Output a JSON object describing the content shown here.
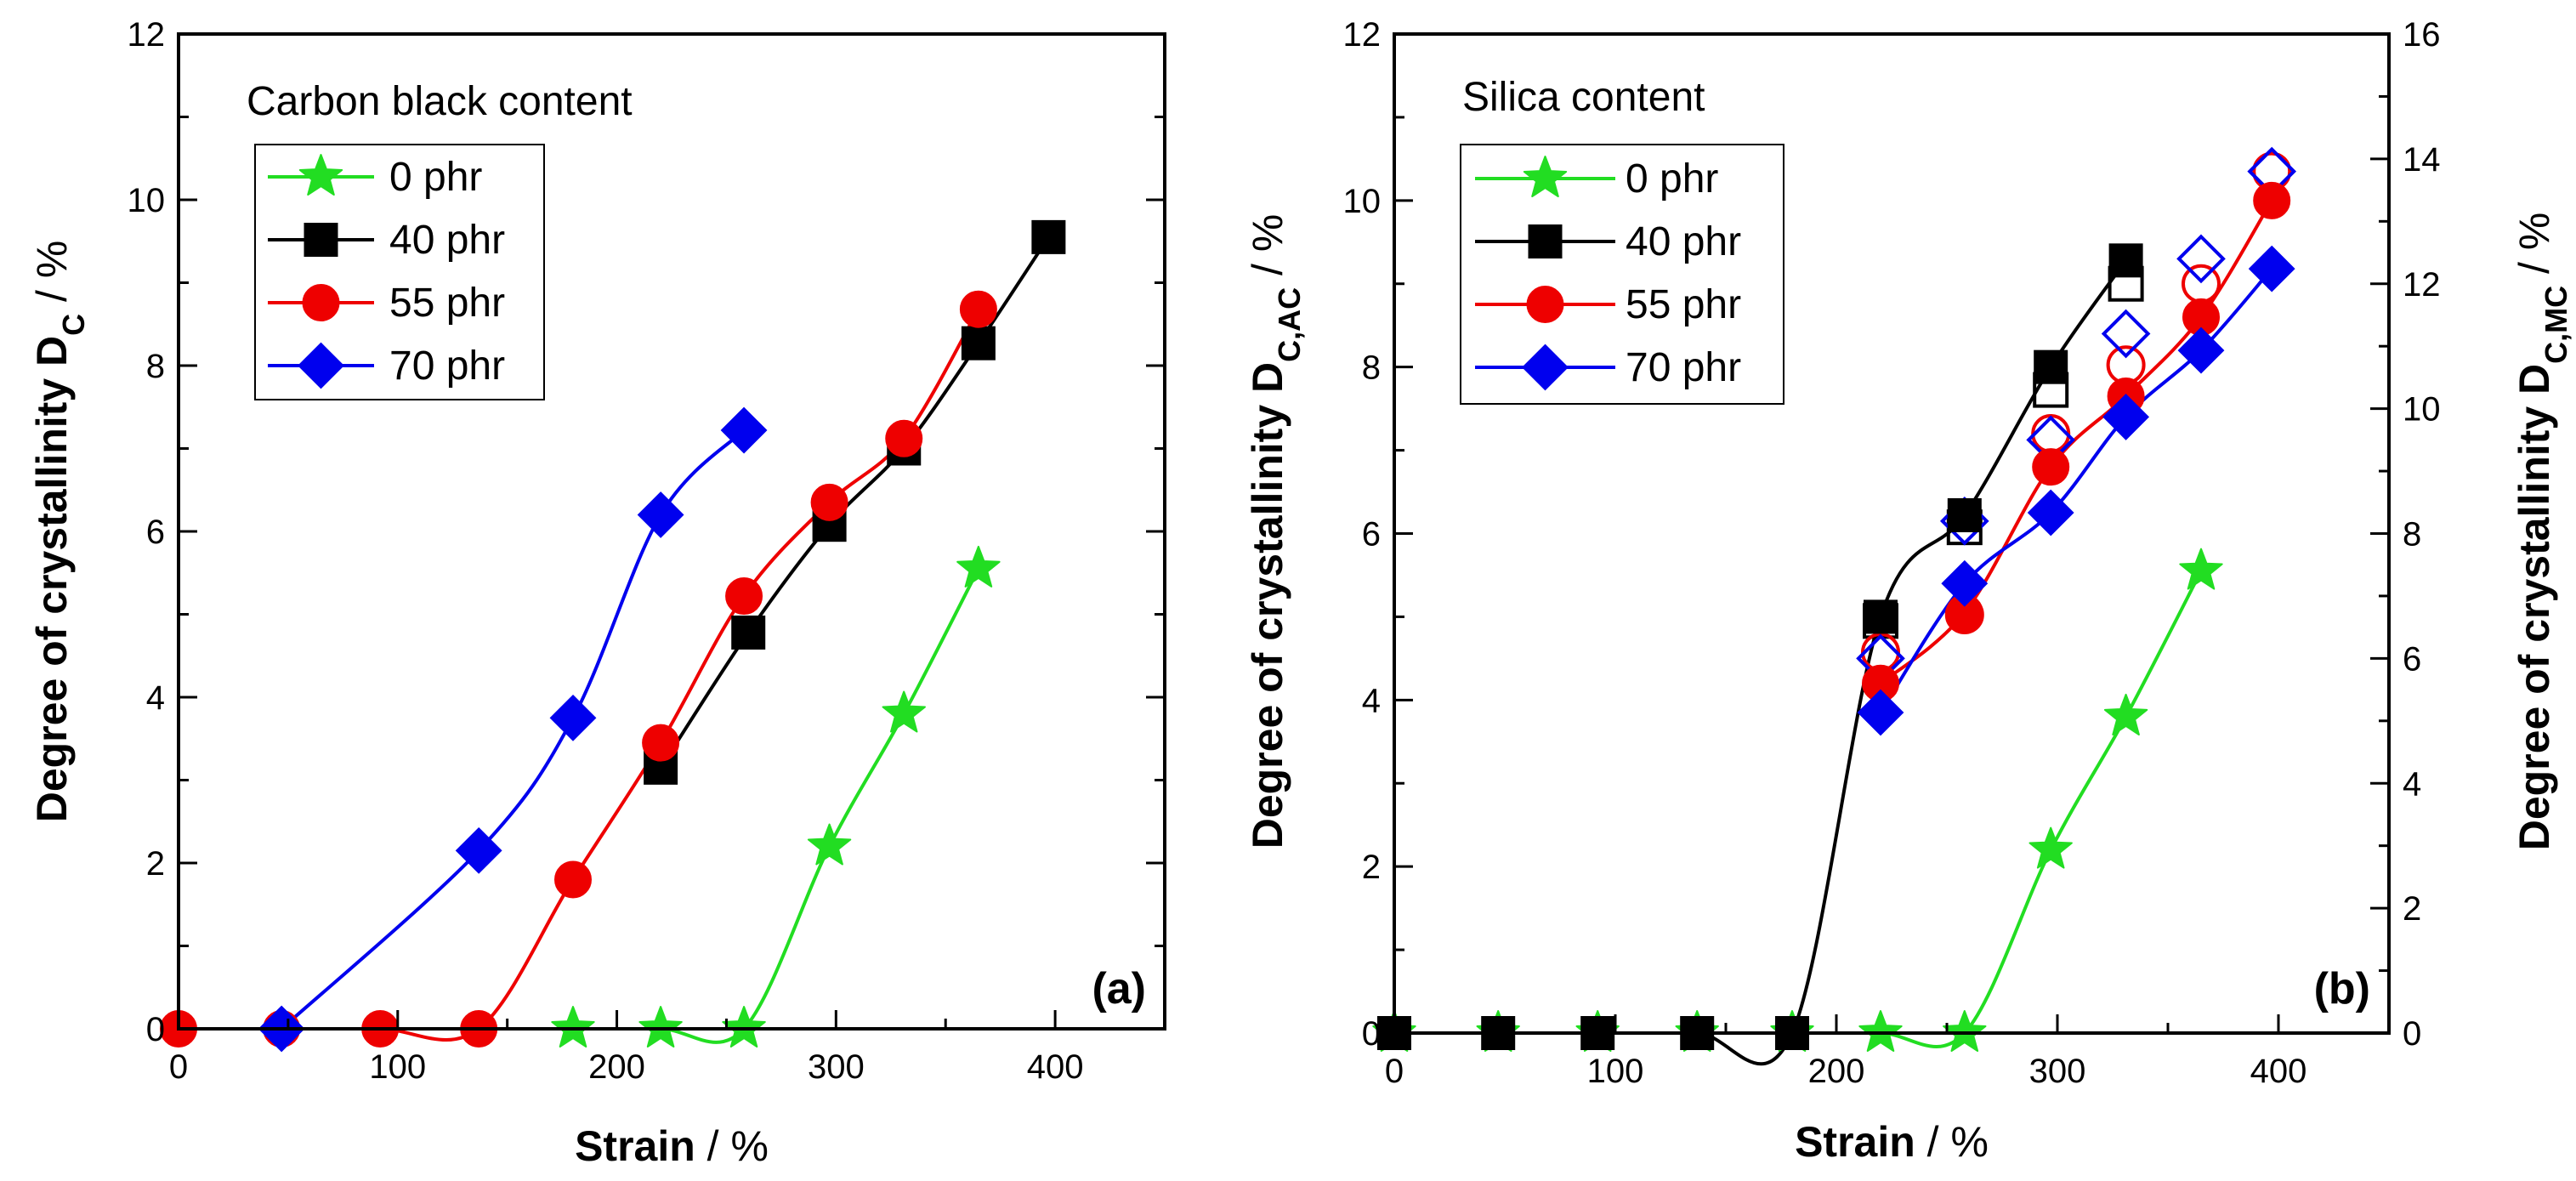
{
  "chart_data": [
    {
      "id": "a",
      "type": "line",
      "panel_label": "(a)",
      "legend_title": "Carbon black content",
      "xlabel": {
        "bold": "Strain",
        "rest": " / %"
      },
      "ylabel": {
        "bold": "Degree of crystallinity D",
        "sub": "C",
        "rest": " / %"
      },
      "xlim": [
        0,
        450
      ],
      "ylim": [
        0,
        12
      ],
      "xticks": [
        0,
        100,
        200,
        300,
        400
      ],
      "yticks": [
        0,
        2,
        4,
        6,
        8,
        10,
        12
      ],
      "series": [
        {
          "name": "0 phr",
          "color": "#22dd22",
          "marker": "star",
          "x": [
            180,
            220,
            258,
            297,
            331,
            365
          ],
          "y": [
            0,
            0,
            0,
            2.2,
            3.8,
            5.55
          ]
        },
        {
          "name": "40 phr",
          "color": "#000000",
          "marker": "square",
          "x": [
            220,
            260,
            297,
            331,
            365,
            397
          ],
          "y": [
            3.15,
            4.78,
            6.08,
            7.0,
            8.27,
            9.55
          ]
        },
        {
          "name": "55 phr",
          "color": "#ee0000",
          "marker": "circle",
          "x": [
            0,
            47,
            92,
            137,
            180,
            220,
            258,
            297,
            331,
            365
          ],
          "y": [
            0,
            0,
            0,
            0,
            1.8,
            3.45,
            5.22,
            6.35,
            7.12,
            8.68
          ]
        },
        {
          "name": "70 phr",
          "color": "#0000ee",
          "marker": "diamond",
          "x": [
            47,
            137,
            180,
            220,
            258
          ],
          "y": [
            0,
            2.15,
            3.75,
            6.2,
            7.22
          ]
        }
      ]
    },
    {
      "id": "b",
      "type": "line",
      "panel_label": "(b)",
      "legend_title": "Silica content",
      "xlabel": {
        "bold": "Strain",
        "rest": " / %"
      },
      "ylabel": {
        "bold": "Degree of crystallinity D",
        "sub": "C,AC",
        "rest": " / %"
      },
      "y2label": {
        "bold": "Degree of crystallinity D",
        "sub": "C,MC",
        "rest": " / %"
      },
      "xlim": [
        0,
        450
      ],
      "ylim": [
        0,
        12
      ],
      "y2lim": [
        0,
        16
      ],
      "xticks": [
        0,
        100,
        200,
        300,
        400
      ],
      "yticks": [
        0,
        2,
        4,
        6,
        8,
        10,
        12
      ],
      "y2ticks": [
        0,
        2,
        4,
        6,
        8,
        10,
        12,
        14,
        16
      ],
      "series": [
        {
          "name": "0 phr",
          "color": "#22dd22",
          "marker": "star",
          "x": [
            0,
            47,
            92,
            137,
            180,
            220,
            258,
            297,
            331,
            365
          ],
          "y": [
            0,
            0,
            0,
            0,
            0,
            0,
            0,
            2.2,
            3.8,
            5.55
          ]
        },
        {
          "name": "40 phr",
          "color": "#000000",
          "marker": "square",
          "x": [
            0,
            47,
            92,
            137,
            180,
            220,
            258,
            297,
            331
          ],
          "y": [
            0,
            0,
            0,
            0,
            0,
            5.0,
            6.22,
            8.0,
            9.28
          ],
          "open_y2": [
            6.6,
            8.1,
            10.3,
            12.0
          ]
        },
        {
          "name": "55 phr",
          "color": "#ee0000",
          "marker": "circle",
          "x": [
            220,
            258,
            297,
            331,
            365,
            397
          ],
          "y": [
            4.2,
            5.05,
            6.8,
            7.65,
            8.6,
            10.0
          ],
          "open_y2": [
            6.1,
            6.7,
            9.6,
            10.7,
            12.0,
            13.8
          ]
        },
        {
          "name": "70 phr",
          "color": "#0000ee",
          "marker": "diamond",
          "x": [
            220,
            258,
            297,
            331,
            365,
            397
          ],
          "y": [
            3.85,
            5.4,
            6.25,
            7.4,
            8.2,
            9.18
          ],
          "open_y2": [
            6.0,
            8.2,
            9.5,
            11.2,
            12.4,
            13.8
          ]
        }
      ]
    }
  ]
}
